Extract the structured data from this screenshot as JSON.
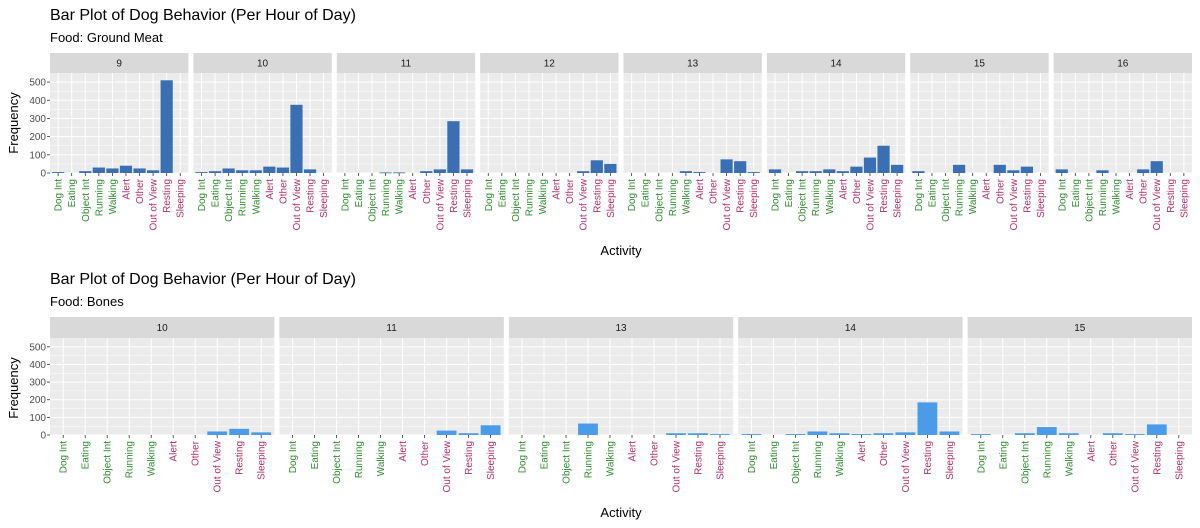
{
  "colors": {
    "panel_bg": "#ebebeb",
    "grid": "#ffffff",
    "strip_bg": "#d9d9d9",
    "bar_meat": "#3a70b3",
    "bar_bones": "#4a9be8",
    "tick_green": "#2e8b2e",
    "tick_maroon": "#b0306a"
  },
  "activities": [
    "Dog Int",
    "Eating",
    "Object Int",
    "Running",
    "Walking",
    "Alert",
    "Other",
    "Out of View",
    "Resting",
    "Sleeping"
  ],
  "activity_colors": [
    "green",
    "green",
    "green",
    "green",
    "green",
    "maroon",
    "maroon",
    "maroon",
    "maroon",
    "maroon"
  ],
  "chart_data": [
    {
      "type": "bar",
      "title": "Bar Plot of Dog Behavior (Per Hour of Day)",
      "subtitle": "Food: Ground Meat",
      "xlabel": "Activity",
      "ylabel": "Frequency",
      "ylim": [
        0,
        550
      ],
      "yticks": [
        0,
        100,
        200,
        300,
        400,
        500
      ],
      "facet_by": "hour",
      "panels": [
        {
          "hour": "9",
          "x": [
            "Dog Int",
            "Eating",
            "Object Int",
            "Running",
            "Walking",
            "Alert",
            "Other",
            "Out of View",
            "Resting",
            "Sleeping"
          ],
          "values": [
            5,
            0,
            10,
            30,
            25,
            40,
            25,
            15,
            510,
            0
          ]
        },
        {
          "hour": "10",
          "x": [
            "Dog Int",
            "Eating",
            "Object Int",
            "Running",
            "Walking",
            "Alert",
            "Other",
            "Out of View",
            "Resting",
            "Sleeping"
          ],
          "values": [
            5,
            10,
            25,
            15,
            15,
            35,
            30,
            375,
            20,
            0
          ]
        },
        {
          "hour": "11",
          "x": [
            "Dog Int",
            "Eating",
            "Object Int",
            "Running",
            "Walking",
            "Alert",
            "Other",
            "Out of View",
            "Resting",
            "Sleeping"
          ],
          "values": [
            0,
            0,
            0,
            3,
            3,
            0,
            10,
            20,
            285,
            20
          ]
        },
        {
          "hour": "12",
          "x": [
            "Dog Int",
            "Eating",
            "Object Int",
            "Running",
            "Walking",
            "Alert",
            "Other",
            "Out of View",
            "Resting",
            "Sleeping"
          ],
          "values": [
            0,
            0,
            0,
            0,
            0,
            0,
            0,
            10,
            70,
            50
          ]
        },
        {
          "hour": "13",
          "x": [
            "Dog Int",
            "Eating",
            "Object Int",
            "Running",
            "Walking",
            "Alert",
            "Other",
            "Out of View",
            "Resting",
            "Sleeping"
          ],
          "values": [
            0,
            0,
            0,
            0,
            10,
            5,
            0,
            75,
            65,
            5
          ]
        },
        {
          "hour": "14",
          "x": [
            "Dog Int",
            "Eating",
            "Object Int",
            "Running",
            "Walking",
            "Alert",
            "Other",
            "Out of View",
            "Resting",
            "Sleeping"
          ],
          "values": [
            20,
            0,
            10,
            10,
            20,
            10,
            35,
            85,
            150,
            45
          ]
        },
        {
          "hour": "15",
          "x": [
            "Dog Int",
            "Eating",
            "Object Int",
            "Running",
            "Walking",
            "Alert",
            "Other",
            "Out of View",
            "Resting",
            "Sleeping"
          ],
          "values": [
            10,
            0,
            0,
            45,
            0,
            0,
            45,
            15,
            35,
            0
          ]
        },
        {
          "hour": "16",
          "x": [
            "Dog Int",
            "Eating",
            "Object Int",
            "Running",
            "Walking",
            "Alert",
            "Other",
            "Out of View",
            "Resting",
            "Sleeping"
          ],
          "values": [
            20,
            0,
            0,
            15,
            0,
            0,
            20,
            65,
            0,
            0
          ]
        }
      ]
    },
    {
      "type": "bar",
      "title": "Bar Plot of Dog Behavior (Per Hour of Day)",
      "subtitle": "Food: Bones",
      "xlabel": "Activity",
      "ylabel": "Frequency",
      "ylim": [
        0,
        550
      ],
      "yticks": [
        0,
        100,
        200,
        300,
        400,
        500
      ],
      "facet_by": "hour",
      "panels": [
        {
          "hour": "10",
          "x": [
            "Dog Int",
            "Eating",
            "Object Int",
            "Running",
            "Walking",
            "Alert",
            "Other",
            "Out of View",
            "Resting",
            "Sleeping"
          ],
          "values": [
            0,
            0,
            0,
            0,
            0,
            0,
            0,
            20,
            35,
            15
          ]
        },
        {
          "hour": "11",
          "x": [
            "Dog Int",
            "Eating",
            "Object Int",
            "Running",
            "Walking",
            "Alert",
            "Other",
            "Out of View",
            "Resting",
            "Sleeping"
          ],
          "values": [
            0,
            0,
            0,
            0,
            0,
            0,
            0,
            25,
            10,
            55
          ]
        },
        {
          "hour": "13",
          "x": [
            "Dog Int",
            "Eating",
            "Object Int",
            "Running",
            "Walking",
            "Alert",
            "Other",
            "Out of View",
            "Resting",
            "Sleeping"
          ],
          "values": [
            0,
            0,
            0,
            65,
            0,
            0,
            0,
            10,
            10,
            5
          ]
        },
        {
          "hour": "14",
          "x": [
            "Dog Int",
            "Eating",
            "Object Int",
            "Running",
            "Walking",
            "Alert",
            "Other",
            "Out of View",
            "Resting",
            "Sleeping"
          ],
          "values": [
            5,
            0,
            5,
            20,
            10,
            5,
            10,
            15,
            185,
            20
          ]
        },
        {
          "hour": "15",
          "x": [
            "Dog Int",
            "Eating",
            "Object Int",
            "Running",
            "Walking",
            "Alert",
            "Other",
            "Out of View",
            "Resting",
            "Sleeping"
          ],
          "values": [
            5,
            0,
            10,
            45,
            10,
            0,
            10,
            5,
            60,
            0
          ]
        }
      ]
    }
  ]
}
